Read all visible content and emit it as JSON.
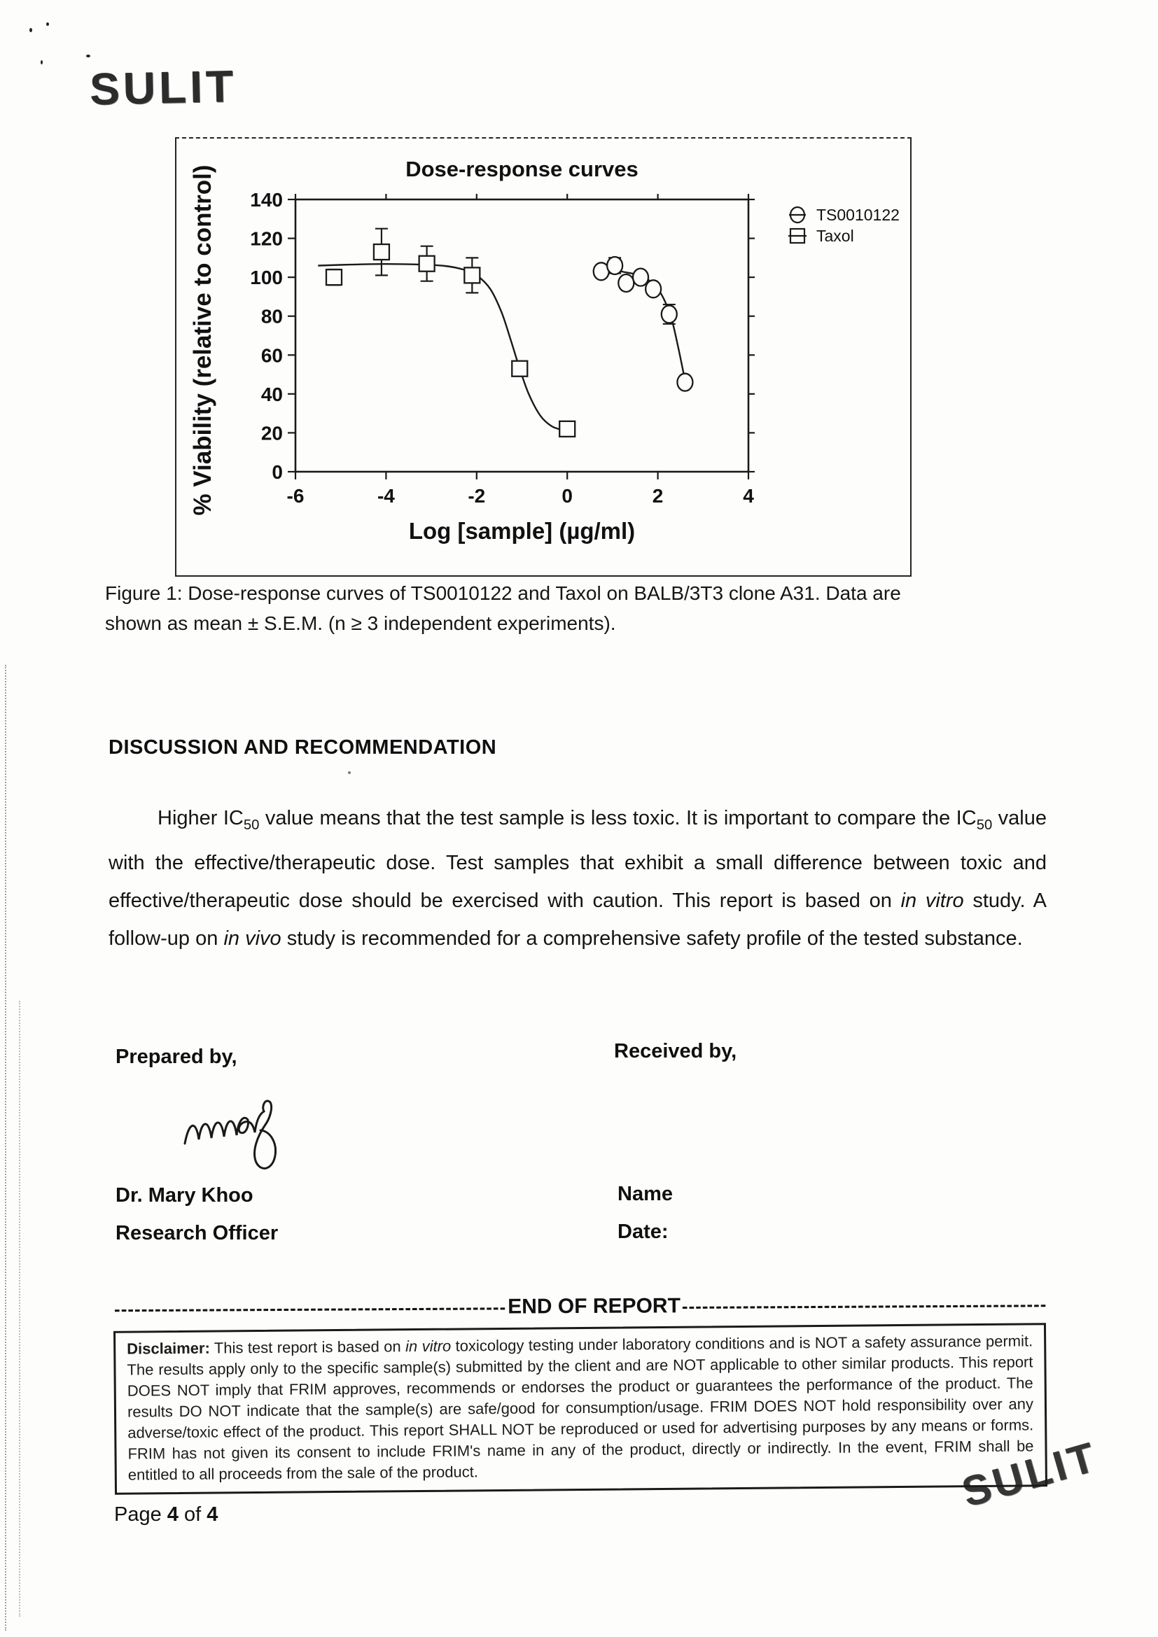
{
  "stamps": {
    "top": "SULIT",
    "bottom": "SULIT"
  },
  "figure": {
    "caption_line1": "Figure 1: Dose-response curves of TS0010122 and Taxol on BALB/3T3 clone A31. Data are",
    "caption_line2": "shown as mean ± S.E.M. (n ≥ 3 independent experiments)."
  },
  "chart_data": {
    "type": "scatter",
    "title": "Dose-response curves",
    "xlabel": "Log [sample] (µg/ml)",
    "ylabel": "% Viability (relative to control)",
    "xlim": [
      -6,
      4
    ],
    "ylim": [
      0,
      140
    ],
    "xticks": [
      -6,
      -4,
      -2,
      0,
      2,
      4
    ],
    "yticks": [
      0,
      20,
      40,
      60,
      80,
      100,
      120,
      140
    ],
    "grid": false,
    "legend_position": "right-outside",
    "series": [
      {
        "name": "TS0010122",
        "marker": "circle",
        "points": [
          {
            "x": 0.75,
            "y": 103,
            "err": 3
          },
          {
            "x": 1.05,
            "y": 106,
            "err": 4
          },
          {
            "x": 1.3,
            "y": 97,
            "err": 0
          },
          {
            "x": 1.62,
            "y": 100,
            "err": 0
          },
          {
            "x": 1.9,
            "y": 94,
            "err": 0
          },
          {
            "x": 2.25,
            "y": 81,
            "err": 5
          },
          {
            "x": 2.6,
            "y": 46,
            "err": 0
          }
        ],
        "curve": [
          [
            0.7,
            102.5
          ],
          [
            1.0,
            103.5
          ],
          [
            1.3,
            102.5
          ],
          [
            1.6,
            101
          ],
          [
            1.8,
            98.5
          ],
          [
            2.0,
            94
          ],
          [
            2.15,
            88
          ],
          [
            2.3,
            79
          ],
          [
            2.45,
            64
          ],
          [
            2.6,
            47
          ]
        ]
      },
      {
        "name": "Taxol",
        "marker": "square",
        "points": [
          {
            "x": -5.15,
            "y": 100,
            "err": 4
          },
          {
            "x": -4.1,
            "y": 113,
            "err": 12
          },
          {
            "x": -3.1,
            "y": 107,
            "err": 9
          },
          {
            "x": -2.1,
            "y": 101,
            "err": 9
          },
          {
            "x": -1.05,
            "y": 53,
            "err": 0
          },
          {
            "x": 0.0,
            "y": 22,
            "err": 0
          }
        ],
        "curve": [
          [
            -5.5,
            106
          ],
          [
            -4.8,
            106.5
          ],
          [
            -4.0,
            106.8
          ],
          [
            -3.2,
            106.5
          ],
          [
            -2.7,
            105.8
          ],
          [
            -2.3,
            104
          ],
          [
            -2.0,
            101
          ],
          [
            -1.7,
            94
          ],
          [
            -1.45,
            82
          ],
          [
            -1.25,
            68
          ],
          [
            -1.05,
            53
          ],
          [
            -0.85,
            40
          ],
          [
            -0.6,
            29
          ],
          [
            -0.35,
            23.5
          ],
          [
            -0.1,
            21.5
          ],
          [
            0.12,
            21
          ]
        ]
      }
    ]
  },
  "discussion": {
    "heading": "DISCUSSION AND RECOMMENDATION",
    "paragraph": [
      {
        "t": "Higher IC"
      },
      {
        "t": "50",
        "s": "sub"
      },
      {
        "t": " value means that the test sample is less toxic. It is important to compare the IC"
      },
      {
        "t": "50",
        "s": "sub"
      },
      {
        "t": " value with the effective/therapeutic dose. Test samples that exhibit a small difference between toxic and effective/therapeutic dose should be exercised with caution. This report is based on "
      },
      {
        "t": "in vitro",
        "s": "i"
      },
      {
        "t": " study. A follow-up on "
      },
      {
        "t": "in vivo",
        "s": "i"
      },
      {
        "t": " study is recommended for a comprehensive safety profile of the tested substance."
      }
    ]
  },
  "signoff": {
    "prepared_label": "Prepared by,",
    "received_label": "Received by,",
    "prepared_name": "Dr. Mary Khoo",
    "prepared_title": "Research Officer",
    "received_name_label": "Name",
    "received_date_label": "Date:"
  },
  "end_of_report": {
    "left_dashes": "----------------------------------------------------------",
    "label": "END OF REPORT",
    "right_dashes": "----------------------------------------------------------"
  },
  "disclaimer": [
    {
      "t": "Disclaimer:",
      "s": "b"
    },
    {
      "t": " This test report is based on "
    },
    {
      "t": "in vitro",
      "s": "i"
    },
    {
      "t": " toxicology testing under laboratory conditions and is NOT a safety assurance permit. The results apply only to the specific sample(s) submitted by the client and are NOT applicable to other similar products. This report DOES NOT imply that FRIM approves, recommends or endorses the product or guarantees the performance of the product. The results DO NOT indicate that the sample(s) are safe/good for consumption/usage. FRIM DOES NOT hold responsibility over any adverse/toxic effect of the product. This report SHALL NOT be reproduced or used for advertising purposes by any means or forms. FRIM has not given its consent to include FRIM's name in any of the product, directly or indirectly. In the event, FRIM shall be entitled to all proceeds from the sale of the product."
    }
  ],
  "footer": {
    "page_label": [
      {
        "t": "Page "
      },
      {
        "t": "4",
        "s": "b"
      },
      {
        "t": " of "
      },
      {
        "t": "4",
        "s": "b"
      }
    ]
  }
}
